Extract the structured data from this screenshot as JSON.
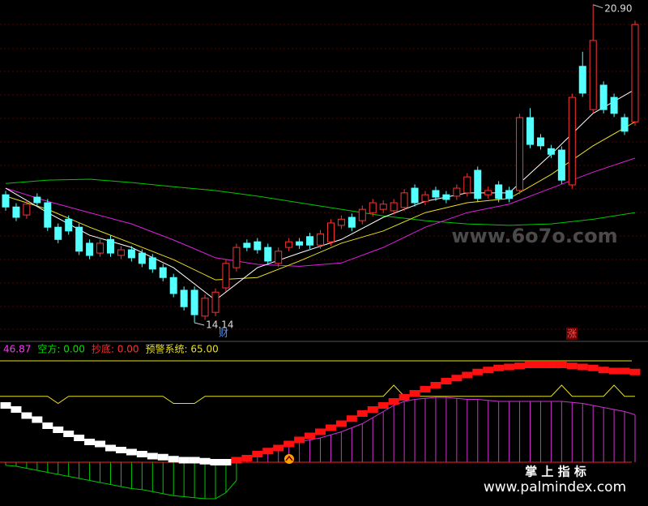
{
  "chart_data": [
    {
      "type": "candlestick",
      "ylim": [
        13.76,
        21.0
      ],
      "up_color": "#ff3232",
      "down_color": "#54ffff",
      "ohlc": [
        [
          16.86,
          16.94,
          16.52,
          16.6
        ],
        [
          16.6,
          16.68,
          16.3,
          16.38
        ],
        [
          16.43,
          16.74,
          16.35,
          16.66
        ],
        [
          16.81,
          16.89,
          16.61,
          16.69
        ],
        [
          16.69,
          16.77,
          16.09,
          16.17
        ],
        [
          16.17,
          16.25,
          15.83,
          15.91
        ],
        [
          16.34,
          16.42,
          16.01,
          16.09
        ],
        [
          16.17,
          16.25,
          15.58,
          15.66
        ],
        [
          15.83,
          15.91,
          15.49,
          15.57
        ],
        [
          15.62,
          15.91,
          15.54,
          15.83
        ],
        [
          15.91,
          15.99,
          15.54,
          15.62
        ],
        [
          15.57,
          15.77,
          15.49,
          15.69
        ],
        [
          15.69,
          15.77,
          15.44,
          15.52
        ],
        [
          15.62,
          15.7,
          15.32,
          15.4
        ],
        [
          15.52,
          15.6,
          15.2,
          15.28
        ],
        [
          15.31,
          15.39,
          15.02,
          15.1
        ],
        [
          15.1,
          15.18,
          14.68,
          14.76
        ],
        [
          14.83,
          14.91,
          14.4,
          14.48
        ],
        [
          14.83,
          14.91,
          14.14,
          14.31
        ],
        [
          14.28,
          14.74,
          14.2,
          14.66
        ],
        [
          14.36,
          14.87,
          14.28,
          14.79
        ],
        [
          14.88,
          15.48,
          14.8,
          15.4
        ],
        [
          15.31,
          15.82,
          15.23,
          15.74
        ],
        [
          15.83,
          15.91,
          15.66,
          15.74
        ],
        [
          15.86,
          15.94,
          15.61,
          15.69
        ],
        [
          15.74,
          15.82,
          15.37,
          15.45
        ],
        [
          15.4,
          15.74,
          15.32,
          15.66
        ],
        [
          15.74,
          15.94,
          15.66,
          15.86
        ],
        [
          15.86,
          15.94,
          15.71,
          15.79
        ],
        [
          15.97,
          16.05,
          15.71,
          15.79
        ],
        [
          15.79,
          16.11,
          15.71,
          16.03
        ],
        [
          15.86,
          16.34,
          15.78,
          16.26
        ],
        [
          16.21,
          16.42,
          16.13,
          16.34
        ],
        [
          16.38,
          16.46,
          16.09,
          16.17
        ],
        [
          16.31,
          16.63,
          16.23,
          16.55
        ],
        [
          16.48,
          16.77,
          16.4,
          16.69
        ],
        [
          16.55,
          16.74,
          16.47,
          16.66
        ],
        [
          16.52,
          16.77,
          16.44,
          16.69
        ],
        [
          16.59,
          16.98,
          16.51,
          16.9
        ],
        [
          17.0,
          17.08,
          16.61,
          16.69
        ],
        [
          16.72,
          16.94,
          16.64,
          16.86
        ],
        [
          16.95,
          17.03,
          16.73,
          16.81
        ],
        [
          16.86,
          16.94,
          16.68,
          16.76
        ],
        [
          16.83,
          17.08,
          16.75,
          17.0
        ],
        [
          16.9,
          17.32,
          16.82,
          17.24
        ],
        [
          17.38,
          17.46,
          16.7,
          16.78
        ],
        [
          16.86,
          17.03,
          16.78,
          16.95
        ],
        [
          17.07,
          17.15,
          16.7,
          16.78
        ],
        [
          16.95,
          17.03,
          16.7,
          16.78
        ],
        [
          16.95,
          18.58,
          16.87,
          18.5
        ],
        [
          18.5,
          18.7,
          17.85,
          17.93
        ],
        [
          18.07,
          18.15,
          17.82,
          17.9
        ],
        [
          17.84,
          17.92,
          17.64,
          17.72
        ],
        [
          17.81,
          17.89,
          17.09,
          17.17
        ],
        [
          17.07,
          19.01,
          16.99,
          18.93
        ],
        [
          19.59,
          19.9,
          18.94,
          19.02
        ],
        [
          18.67,
          20.9,
          18.59,
          20.14
        ],
        [
          19.19,
          19.27,
          18.59,
          18.67
        ],
        [
          18.93,
          19.01,
          18.51,
          18.59
        ],
        [
          18.5,
          18.58,
          18.13,
          18.21
        ],
        [
          18.41,
          20.56,
          18.33,
          20.48
        ]
      ],
      "high_label": {
        "value": 20.9,
        "label": "20.90"
      },
      "low_label": 14.14,
      "lines": [
        {
          "color": "#00c800",
          "x": [
            0,
            4,
            8,
            12,
            16,
            20,
            24,
            28,
            32,
            36,
            40,
            44,
            48,
            52,
            56,
            60
          ],
          "values": [
            17.1,
            17.17,
            17.19,
            17.12,
            17.03,
            16.95,
            16.83,
            16.69,
            16.55,
            16.41,
            16.31,
            16.24,
            16.21,
            16.24,
            16.34,
            16.48
          ]
        },
        {
          "color": "#e020e0",
          "x": [
            0,
            4,
            8,
            12,
            16,
            20,
            24,
            28,
            32,
            36,
            40,
            44,
            48,
            52,
            56,
            60
          ],
          "values": [
            17.0,
            16.72,
            16.48,
            16.24,
            15.9,
            15.52,
            15.38,
            15.34,
            15.41,
            15.74,
            16.17,
            16.48,
            16.66,
            17.0,
            17.34,
            17.64
          ]
        },
        {
          "color": "#e8e020",
          "x": [
            0,
            4,
            8,
            12,
            16,
            20,
            24,
            28,
            32,
            36,
            40,
            44,
            48,
            52,
            56,
            60
          ],
          "values": [
            16.83,
            16.55,
            16.17,
            15.83,
            15.48,
            15.05,
            15.1,
            15.45,
            15.83,
            16.09,
            16.48,
            16.69,
            16.78,
            17.29,
            17.9,
            18.41
          ]
        },
        {
          "color": "#ffffff",
          "x": [
            0,
            4,
            8,
            12,
            16,
            20,
            24,
            28,
            32,
            36,
            40,
            44,
            48,
            52,
            56,
            60
          ],
          "values": [
            17.0,
            16.48,
            16.0,
            15.74,
            15.31,
            14.62,
            15.31,
            15.62,
            15.91,
            16.38,
            16.72,
            16.9,
            16.9,
            17.72,
            18.59,
            19.1
          ]
        }
      ]
    },
    {
      "type": "indicator",
      "ylim": [
        -40,
        116
      ],
      "header": [
        {
          "text": "46.87",
          "color": "#ff33ff"
        },
        {
          "text": "空方: 0.00",
          "color": "#00e000"
        },
        {
          "text": "抄底: 0.00",
          "color": "#ff3030"
        },
        {
          "text": "预警系统: 65.00",
          "color": "#e8e020"
        }
      ],
      "histogram": {
        "pos_color": "#d030d0",
        "neg_color": "#00c800",
        "values": [
          -3,
          -4,
          -6,
          -8,
          -10,
          -12,
          -14,
          -16,
          -18,
          -20,
          -22,
          -24,
          -26,
          -27,
          -29,
          -31,
          -33,
          -34,
          -35,
          -36,
          -36,
          -30,
          -18,
          2,
          8,
          12,
          16,
          18,
          20,
          22,
          24,
          27,
          30,
          34,
          38,
          44,
          50,
          56,
          60,
          62,
          63,
          64,
          64,
          63,
          62,
          62,
          61,
          60,
          60,
          60,
          60,
          60,
          60,
          60,
          59,
          58,
          56,
          54,
          52,
          50,
          46.87
        ]
      },
      "trend": [
        {
          "color": "#ffffff",
          "values": [
            56,
            52,
            46,
            42,
            36,
            32,
            28,
            24,
            20,
            18,
            14,
            12,
            10,
            8,
            6,
            5,
            3,
            2,
            2,
            1,
            0,
            0,
            null,
            null,
            null,
            null,
            null,
            null,
            null,
            null,
            null,
            null,
            null,
            null,
            null,
            null,
            null,
            null,
            null,
            null,
            null,
            null,
            null,
            null,
            null,
            null,
            null,
            null,
            null,
            null,
            null,
            null,
            null,
            null,
            null,
            null,
            null,
            null,
            null,
            null,
            null
          ]
        },
        {
          "color": "#ff1010",
          "values": [
            null,
            null,
            null,
            null,
            null,
            null,
            null,
            null,
            null,
            null,
            null,
            null,
            null,
            null,
            null,
            null,
            null,
            null,
            null,
            null,
            null,
            null,
            2,
            4,
            8,
            11,
            14,
            18,
            22,
            26,
            30,
            34,
            38,
            43,
            48,
            52,
            56,
            60,
            64,
            68,
            72,
            76,
            80,
            83,
            86,
            89,
            91,
            93,
            94,
            95,
            96,
            96,
            96,
            96,
            95,
            94,
            93,
            91,
            90,
            90,
            89
          ]
        }
      ],
      "alert": {
        "color": "#e8e020",
        "ref": 100,
        "values": [
          65,
          65,
          65,
          65,
          65,
          58,
          65,
          65,
          65,
          65,
          65,
          65,
          65,
          65,
          65,
          65,
          58,
          58,
          58,
          65,
          65,
          65,
          65,
          65,
          65,
          65,
          65,
          65,
          65,
          65,
          65,
          65,
          65,
          65,
          65,
          65,
          65,
          76,
          65,
          65,
          65,
          65,
          65,
          65,
          65,
          65,
          65,
          65,
          65,
          65,
          65,
          65,
          65,
          76,
          65,
          65,
          65,
          65,
          76,
          65,
          65
        ]
      }
    }
  ],
  "markers": {
    "cai": "财",
    "zhang": "涨"
  },
  "watermarks": {
    "site": "www.6o7o.com",
    "brand": "掌 上 指 标",
    "url": "www.palmindex.com"
  }
}
